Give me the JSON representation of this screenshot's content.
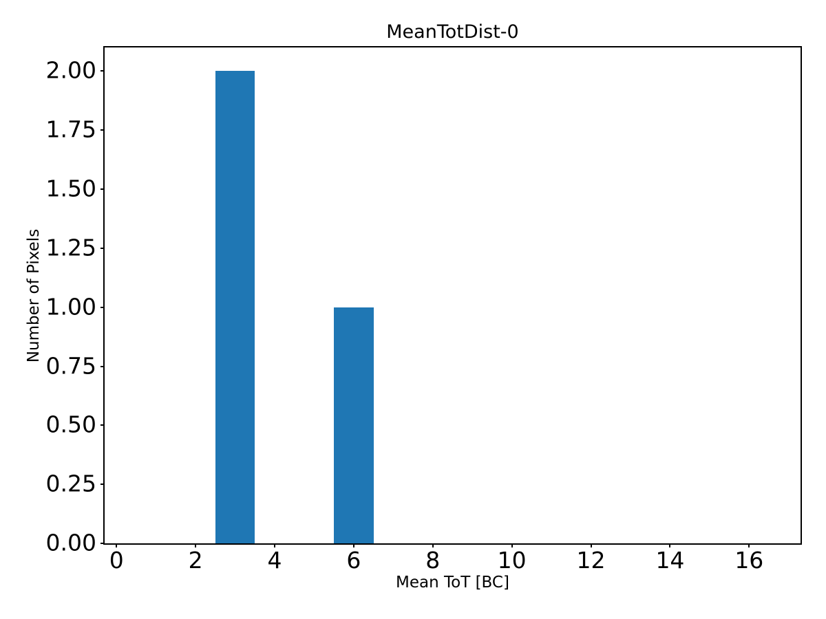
{
  "chart_data": {
    "type": "bar",
    "title": "MeanTotDist-0",
    "xlabel": "Mean ToT [BC]",
    "ylabel": "Number of Pixels",
    "bar_color": "#1f77b4",
    "xlim": [
      -0.3,
      17.3
    ],
    "ylim": [
      0,
      2.1
    ],
    "grid": false,
    "legend_position": "none",
    "bin_width": 1,
    "bars": [
      {
        "x0": 2.5,
        "x1": 3.5,
        "center": 3,
        "height": 2.0
      },
      {
        "x0": 5.5,
        "x1": 6.5,
        "center": 6,
        "height": 1.0
      }
    ],
    "x_ticks": [
      {
        "value": 0,
        "label": "0"
      },
      {
        "value": 2,
        "label": "2"
      },
      {
        "value": 4,
        "label": "4"
      },
      {
        "value": 6,
        "label": "6"
      },
      {
        "value": 8,
        "label": "8"
      },
      {
        "value": 10,
        "label": "10"
      },
      {
        "value": 12,
        "label": "12"
      },
      {
        "value": 14,
        "label": "14"
      },
      {
        "value": 16,
        "label": "16"
      }
    ],
    "y_ticks": [
      {
        "value": 0.0,
        "label": "0.00"
      },
      {
        "value": 0.25,
        "label": "0.25"
      },
      {
        "value": 0.5,
        "label": "0.50"
      },
      {
        "value": 0.75,
        "label": "0.75"
      },
      {
        "value": 1.0,
        "label": "1.00"
      },
      {
        "value": 1.25,
        "label": "1.25"
      },
      {
        "value": 1.5,
        "label": "1.50"
      },
      {
        "value": 1.75,
        "label": "1.75"
      },
      {
        "value": 2.0,
        "label": "2.00"
      }
    ]
  },
  "colors": {
    "background": "#ffffff",
    "text": "#000000",
    "spine": "#000000",
    "bar": "#1f77b4"
  }
}
